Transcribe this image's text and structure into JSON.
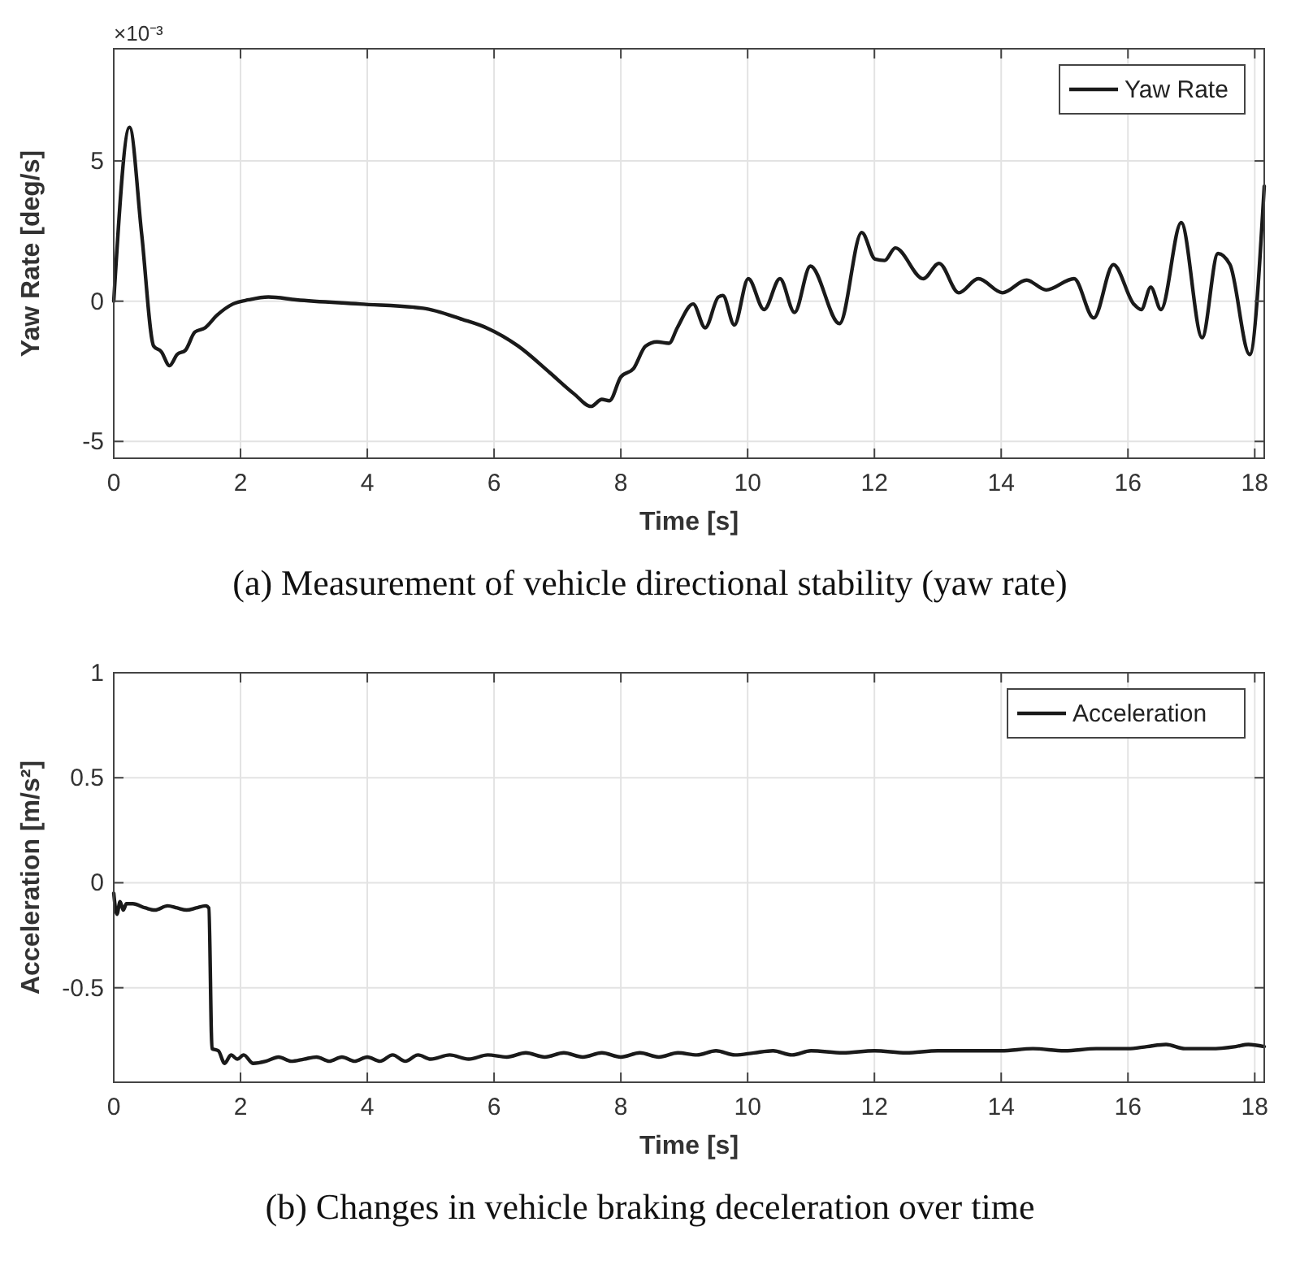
{
  "chart_data": [
    {
      "type": "line",
      "title": "(a) Measurement of vehicle directional stability (yaw rate)",
      "xlabel": "Time [s]",
      "ylabel": "Yaw Rate [deg/s]",
      "annotations": [
        "×10⁻³"
      ],
      "xlim": [
        0,
        18.15
      ],
      "ylim": [
        -5.6,
        9
      ],
      "xticks": [
        0,
        2,
        4,
        6,
        8,
        10,
        12,
        14,
        16,
        18
      ],
      "yticks": [
        -5,
        0,
        5
      ],
      "grid": true,
      "legend": "top right",
      "line_style": "solid",
      "series": [
        {
          "name": "Yaw Rate",
          "color": "#1a1a1a",
          "x": [
            0,
            0.25,
            0.44,
            0.63,
            0.75,
            0.88,
            1.0,
            1.13,
            1.28,
            1.44,
            1.63,
            1.88,
            2.13,
            2.44,
            2.88,
            3.88,
            4.88,
            5.5,
            5.88,
            6.38,
            6.88,
            7.26,
            7.53,
            7.7,
            7.82,
            8.0,
            8.2,
            8.39,
            8.57,
            8.76,
            8.89,
            9.14,
            9.33,
            9.54,
            9.61,
            9.79,
            10.01,
            10.26,
            10.51,
            10.74,
            10.99,
            11.45,
            11.8,
            12.01,
            12.16,
            12.33,
            12.77,
            13.02,
            13.33,
            13.64,
            14.02,
            14.4,
            14.71,
            15.15,
            15.46,
            15.77,
            16.09,
            16.21,
            16.36,
            16.52,
            16.84,
            17.17,
            17.42,
            17.61,
            17.92,
            18.15
          ],
          "values": [
            0,
            6.2,
            2.4,
            -1.6,
            -1.8,
            -2.3,
            -1.9,
            -1.75,
            -1.1,
            -0.95,
            -0.5,
            -0.1,
            0.05,
            0.15,
            0.05,
            -0.1,
            -0.25,
            -0.65,
            -0.95,
            -1.6,
            -2.55,
            -3.3,
            -3.75,
            -3.5,
            -3.55,
            -2.7,
            -2.4,
            -1.6,
            -1.45,
            -1.5,
            -0.95,
            -0.1,
            -0.95,
            0.15,
            0.2,
            -0.85,
            0.8,
            -0.3,
            0.8,
            -0.4,
            1.25,
            -0.8,
            2.45,
            1.5,
            1.45,
            1.9,
            0.8,
            1.35,
            0.3,
            0.8,
            0.3,
            0.75,
            0.4,
            0.8,
            -0.6,
            1.3,
            -0.1,
            -0.3,
            0.5,
            -0.3,
            2.8,
            -1.3,
            1.7,
            1.3,
            -1.9,
            4.1
          ]
        }
      ]
    },
    {
      "type": "line",
      "title": "(b) Changes in vehicle braking deceleration over time",
      "xlabel": "Time [s]",
      "ylabel": "Acceleration [m/s²]",
      "xlim": [
        0,
        18.15
      ],
      "ylim": [
        -0.95,
        1
      ],
      "xticks": [
        0,
        2,
        4,
        6,
        8,
        10,
        12,
        14,
        16,
        18
      ],
      "yticks": [
        -0.5,
        0,
        0.5,
        1
      ],
      "grid": true,
      "legend": "top right",
      "line_style": "solid",
      "series": [
        {
          "name": "Acceleration",
          "color": "#1a1a1a",
          "x": [
            0,
            0.05,
            0.1,
            0.15,
            0.2,
            0.3,
            0.5,
            0.65,
            0.85,
            1.0,
            1.15,
            1.3,
            1.45,
            1.5,
            1.55,
            1.65,
            1.75,
            1.85,
            1.95,
            2.05,
            2.2,
            2.4,
            2.6,
            2.8,
            3.0,
            3.2,
            3.4,
            3.6,
            3.8,
            4.0,
            4.2,
            4.4,
            4.6,
            4.8,
            5.0,
            5.3,
            5.6,
            5.9,
            6.2,
            6.5,
            6.8,
            7.1,
            7.4,
            7.7,
            8.0,
            8.3,
            8.6,
            8.9,
            9.2,
            9.5,
            9.8,
            10.1,
            10.4,
            10.7,
            11.0,
            11.5,
            12.0,
            12.5,
            13.0,
            13.5,
            14.0,
            14.5,
            15.0,
            15.5,
            16.0,
            16.3,
            16.6,
            16.9,
            17.3,
            17.7,
            17.9,
            18.15
          ],
          "values": [
            -0.05,
            -0.15,
            -0.09,
            -0.13,
            -0.1,
            -0.1,
            -0.12,
            -0.13,
            -0.11,
            -0.12,
            -0.13,
            -0.12,
            -0.11,
            -0.12,
            -0.79,
            -0.8,
            -0.86,
            -0.82,
            -0.84,
            -0.82,
            -0.86,
            -0.85,
            -0.83,
            -0.85,
            -0.84,
            -0.83,
            -0.85,
            -0.83,
            -0.85,
            -0.83,
            -0.85,
            -0.82,
            -0.85,
            -0.82,
            -0.84,
            -0.82,
            -0.84,
            -0.82,
            -0.83,
            -0.81,
            -0.83,
            -0.81,
            -0.83,
            -0.81,
            -0.83,
            -0.81,
            -0.83,
            -0.81,
            -0.82,
            -0.8,
            -0.82,
            -0.81,
            -0.8,
            -0.82,
            -0.8,
            -0.81,
            -0.8,
            -0.81,
            -0.8,
            -0.8,
            -0.8,
            -0.79,
            -0.8,
            -0.79,
            -0.79,
            -0.78,
            -0.77,
            -0.79,
            -0.79,
            -0.78,
            -0.77,
            -0.78
          ]
        }
      ]
    }
  ]
}
